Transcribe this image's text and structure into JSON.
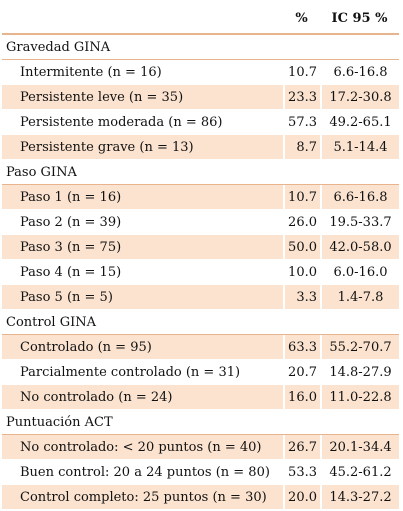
{
  "header": {
    "label": "",
    "pct": "%",
    "ic": "IC 95 %"
  },
  "sections": [
    {
      "title": "Gravedad GINA",
      "rows": [
        {
          "label": "Intermitente (n = 16)",
          "pct": "10.7",
          "ic": "6.6-16.8"
        },
        {
          "label": "Persistente leve (n = 35)",
          "pct": "23.3",
          "ic": "17.2-30.8"
        },
        {
          "label": "Persistente moderada (n = 86)",
          "pct": "57.3",
          "ic": "49.2-65.1"
        },
        {
          "label": "Persistente grave (n = 13)",
          "pct": "8.7",
          "ic": "5.1-14.4"
        }
      ]
    },
    {
      "title": "Paso GINA",
      "rows": [
        {
          "label": "Paso 1 (n = 16)",
          "pct": "10.7",
          "ic": "6.6-16.8"
        },
        {
          "label": "Paso 2 (n = 39)",
          "pct": "26.0",
          "ic": "19.5-33.7"
        },
        {
          "label": "Paso 3 (n = 75)",
          "pct": "50.0",
          "ic": "42.0-58.0"
        },
        {
          "label": "Paso 4 (n = 15)",
          "pct": "10.0",
          "ic": "6.0-16.0"
        },
        {
          "label": "Paso 5 (n = 5)",
          "pct": "3.3",
          "ic": "1.4-7.8"
        }
      ]
    },
    {
      "title": "Control GINA",
      "rows": [
        {
          "label": "Controlado (n = 95)",
          "pct": "63.3",
          "ic": "55.2-70.7"
        },
        {
          "label": "Parcialmente controlado (n = 31)",
          "pct": "20.7",
          "ic": "14.8-27.9"
        },
        {
          "label": "No controlado (n = 24)",
          "pct": "16.0",
          "ic": "11.0-22.8"
        }
      ]
    },
    {
      "title": "Puntuación ACT",
      "rows": [
        {
          "label": "No controlado: < 20 puntos (n = 40)",
          "pct": "26.7",
          "ic": "20.1-34.4"
        },
        {
          "label": "Buen control: 20 a 24 puntos (n = 80)",
          "pct": "53.3",
          "ic": "45.2-61.2"
        },
        {
          "label": "Control completo: 25 puntos (n = 30)",
          "pct": "20.0",
          "ic": "14.3-27.2"
        }
      ]
    }
  ],
  "colors": {
    "shade": "#fbe3d0",
    "rule": "#e8b48e"
  }
}
